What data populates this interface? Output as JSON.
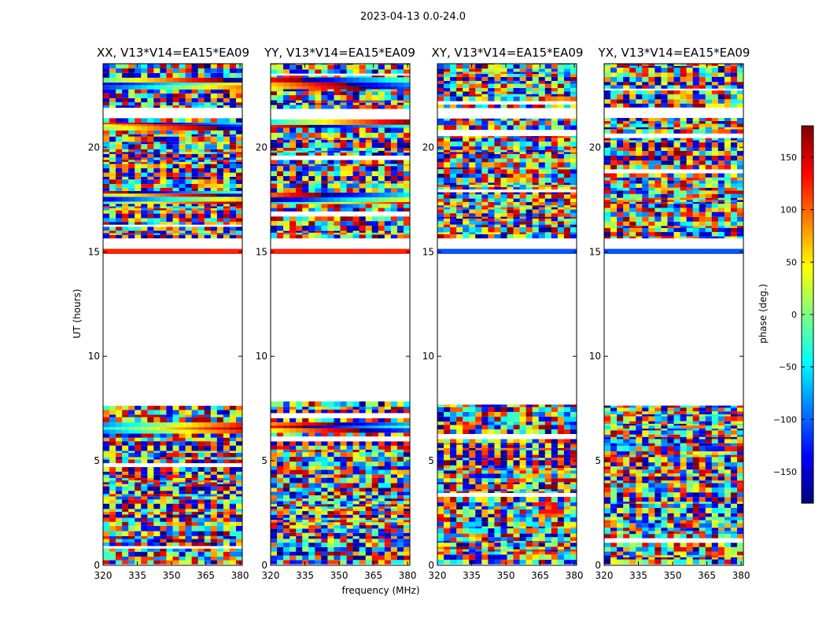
{
  "chart_data": {
    "type": "heatmap",
    "suptitle": "2023-04-13 0.0-24.0",
    "xlabel": "frequency (MHz)",
    "ylabel": "UT (hours)",
    "xlim": [
      320,
      381
    ],
    "ylim": [
      0,
      24
    ],
    "xticks": [
      320,
      335,
      350,
      365,
      380
    ],
    "yticks": [
      0,
      5,
      10,
      15,
      20
    ],
    "colorbar": {
      "label": "phase (deg.)",
      "range": [
        -180,
        180
      ],
      "ticks": [
        -150,
        -100,
        -50,
        0,
        50,
        100,
        150
      ],
      "tick_labels": [
        "−150",
        "−100",
        "−50",
        "0",
        "50",
        "100",
        "150"
      ],
      "colormap": "jet",
      "colors": [
        "#00007f",
        "#0000ff",
        "#007fff",
        "#00ffff",
        "#7fff7f",
        "#ffff00",
        "#ff7f00",
        "#ff0000",
        "#7f0000"
      ]
    },
    "data_gap_ut": [
      7.6,
      14.9
    ],
    "panels": [
      {
        "title": "XX, V13*V14=EA15*EA09",
        "polarization": "XX"
      },
      {
        "title": "YY, V13*V14=EA15*EA09",
        "polarization": "YY"
      },
      {
        "title": "XY, V13*V14=EA15*EA09",
        "polarization": "XY"
      },
      {
        "title": "YX, V13*V14=EA15*EA09",
        "polarization": "YX"
      }
    ]
  }
}
